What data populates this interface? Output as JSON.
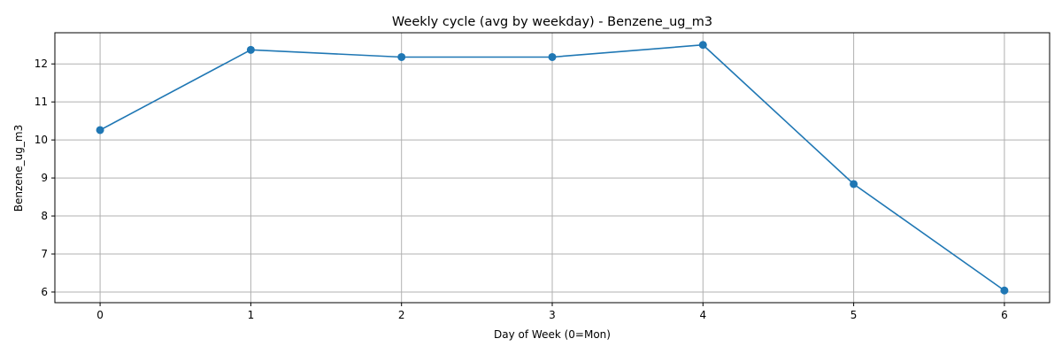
{
  "chart_data": {
    "type": "line",
    "title": "Weekly cycle (avg by weekday) - Benzene_ug_m3",
    "xlabel": "Day of Week (0=Mon)",
    "ylabel": "Benzene_ug_m3",
    "x": [
      0,
      1,
      2,
      3,
      4,
      5,
      6
    ],
    "series": [
      {
        "values": [
          10.26,
          12.37,
          12.18,
          12.18,
          12.5,
          8.84,
          6.04
        ]
      }
    ],
    "xlim": [
      -0.3,
      6.3
    ],
    "ylim": [
      5.72,
      12.82
    ],
    "xticks": [
      "0",
      "1",
      "2",
      "3",
      "4",
      "5",
      "6"
    ],
    "yticks": [
      "6",
      "7",
      "8",
      "9",
      "10",
      "11",
      "12"
    ],
    "grid": true,
    "line_color": "#1f77b4",
    "marker": "circle"
  }
}
